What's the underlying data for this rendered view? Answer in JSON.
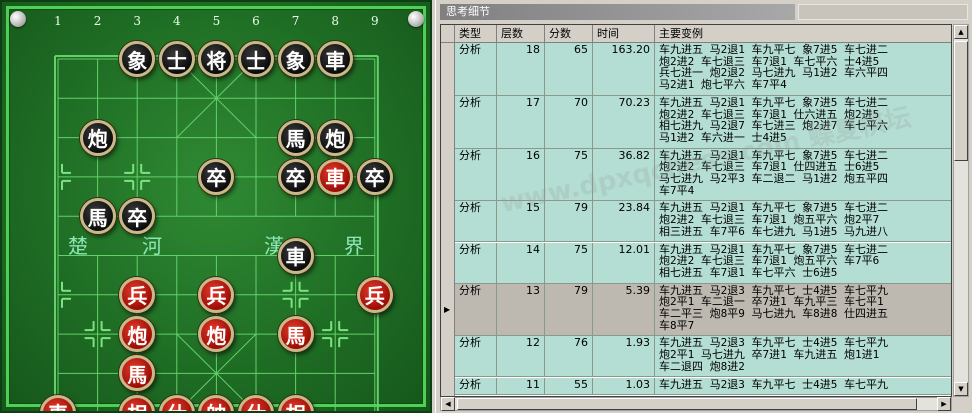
{
  "board": {
    "file_numbers": [
      "1",
      "2",
      "3",
      "4",
      "5",
      "6",
      "7",
      "8",
      "9"
    ],
    "river": {
      "left_a": "楚",
      "left_b": "河",
      "right_a": "漢",
      "right_b": "界"
    },
    "pieces": [
      {
        "name": "elephant",
        "label": "象",
        "side": "black",
        "file": 3,
        "rank": 1
      },
      {
        "name": "advisor",
        "label": "士",
        "side": "black",
        "file": 4,
        "rank": 1
      },
      {
        "name": "general",
        "label": "将",
        "side": "black",
        "file": 5,
        "rank": 1
      },
      {
        "name": "advisor",
        "label": "士",
        "side": "black",
        "file": 6,
        "rank": 1
      },
      {
        "name": "elephant",
        "label": "象",
        "side": "black",
        "file": 7,
        "rank": 1
      },
      {
        "name": "chariot",
        "label": "車",
        "side": "black",
        "file": 8,
        "rank": 1
      },
      {
        "name": "cannon",
        "label": "炮",
        "side": "black",
        "file": 2,
        "rank": 3
      },
      {
        "name": "horse",
        "label": "馬",
        "side": "black",
        "file": 7,
        "rank": 3
      },
      {
        "name": "cannon",
        "label": "炮",
        "side": "black",
        "file": 8,
        "rank": 3
      },
      {
        "name": "soldier",
        "label": "卒",
        "side": "black",
        "file": 5,
        "rank": 4
      },
      {
        "name": "soldier",
        "label": "卒",
        "side": "black",
        "file": 7,
        "rank": 4
      },
      {
        "name": "chariot",
        "label": "車",
        "side": "red",
        "file": 8,
        "rank": 4
      },
      {
        "name": "soldier",
        "label": "卒",
        "side": "black",
        "file": 9,
        "rank": 4
      },
      {
        "name": "horse",
        "label": "馬",
        "side": "black",
        "file": 2,
        "rank": 5
      },
      {
        "name": "soldier",
        "label": "卒",
        "side": "black",
        "file": 3,
        "rank": 5
      },
      {
        "name": "chariot",
        "label": "車",
        "side": "black",
        "file": 7,
        "rank": 6
      },
      {
        "name": "pawn",
        "label": "兵",
        "side": "red",
        "file": 3,
        "rank": 7
      },
      {
        "name": "pawn",
        "label": "兵",
        "side": "red",
        "file": 5,
        "rank": 7
      },
      {
        "name": "pawn",
        "label": "兵",
        "side": "red",
        "file": 9,
        "rank": 7
      },
      {
        "name": "cannon",
        "label": "炮",
        "side": "red",
        "file": 3,
        "rank": 8
      },
      {
        "name": "cannon",
        "label": "炮",
        "side": "red",
        "file": 5,
        "rank": 8
      },
      {
        "name": "horse",
        "label": "馬",
        "side": "red",
        "file": 7,
        "rank": 8
      },
      {
        "name": "horse",
        "label": "馬",
        "side": "red",
        "file": 3,
        "rank": 9
      },
      {
        "name": "chariot",
        "label": "車",
        "side": "red",
        "file": 1,
        "rank": 10
      },
      {
        "name": "elephant",
        "label": "相",
        "side": "red",
        "file": 3,
        "rank": 10
      },
      {
        "name": "advisor",
        "label": "仕",
        "side": "red",
        "file": 4,
        "rank": 10
      },
      {
        "name": "king",
        "label": "帥",
        "side": "red",
        "file": 5,
        "rank": 10
      },
      {
        "name": "advisor",
        "label": "仕",
        "side": "red",
        "file": 6,
        "rank": 10
      },
      {
        "name": "elephant",
        "label": "相",
        "side": "red",
        "file": 7,
        "rank": 10
      }
    ]
  },
  "panel": {
    "title": "思考细节",
    "columns": {
      "type": "类型",
      "depth": "层数",
      "score": "分数",
      "time": "时间",
      "pv": "主要变例"
    },
    "rows": [
      {
        "type": "分析",
        "depth": "18",
        "score": "65",
        "time": "163.20",
        "pv": "车九进五 马2退1 车九平七 象7进5 车七进二\n炮2进2 车七退三 车7退1 车七平六 士4进5\n兵七进一 炮2退2 马七进九 马1进2 车六平四\n马2进1 炮七平六 车7平4",
        "selected": false
      },
      {
        "type": "分析",
        "depth": "17",
        "score": "70",
        "time": "70.23",
        "pv": "车九进五 马2退1 车九平七 象7进5 车七进二\n炮2进2 车七退三 车7退1 仕六进五 炮2进5\n相七进九 马2退7 车七进三 炮2进7 车七平六\n马1进2 车六进一 士4进5",
        "selected": false
      },
      {
        "type": "分析",
        "depth": "16",
        "score": "75",
        "time": "36.82",
        "pv": "车九进五 马2退1 车九平七 象7进5 车七进二\n炮2进2 车七退三 车7退1 仕四进五 士6进5\n马七进九 马2平3 车二退二 马1进2 炮五平四\n车7平4",
        "selected": false
      },
      {
        "type": "分析",
        "depth": "15",
        "score": "79",
        "time": "23.84",
        "pv": "车九进五 马2退1 车九平七 象7进5 车七进二\n炮2进2 车七退三 车7退1 炮五平六 炮2平7\n相三进五 车7平6 车七进九 马1进5 马九进八",
        "selected": false
      },
      {
        "type": "分析",
        "depth": "14",
        "score": "75",
        "time": "12.01",
        "pv": "车九进五 马2退1 车九平七 象7进5 车七进二\n炮2进2 车七退三 车7退1 炮五平六 车7平6\n相七进五 车7退1 车七平六 士6进5",
        "selected": false
      },
      {
        "type": "分析",
        "depth": "13",
        "score": "79",
        "time": "5.39",
        "pv": "车九进五 马2退3 车九平七 士4进5 车七平九\n炮2平1 车二退一 卒7进1 车九平三 车七平1\n车二平三 炮8平9 马七进九 车8进8 仕四进五\n车8平7",
        "selected": true
      },
      {
        "type": "分析",
        "depth": "12",
        "score": "76",
        "time": "1.93",
        "pv": "车九进五 马2退3 车九平七 士4进5 车七平九\n炮2平1 马七进九 卒7进1 车九进五 炮1进1\n车二退四 炮8进2",
        "selected": false
      },
      {
        "type": "分析",
        "depth": "11",
        "score": "55",
        "time": "1.03",
        "pv": "车九进五 马2退3 车九平七 士4进5 车七平九",
        "selected": false
      }
    ]
  },
  "watermark": "www.dpxqchess.com 蝶夏棋坛"
}
